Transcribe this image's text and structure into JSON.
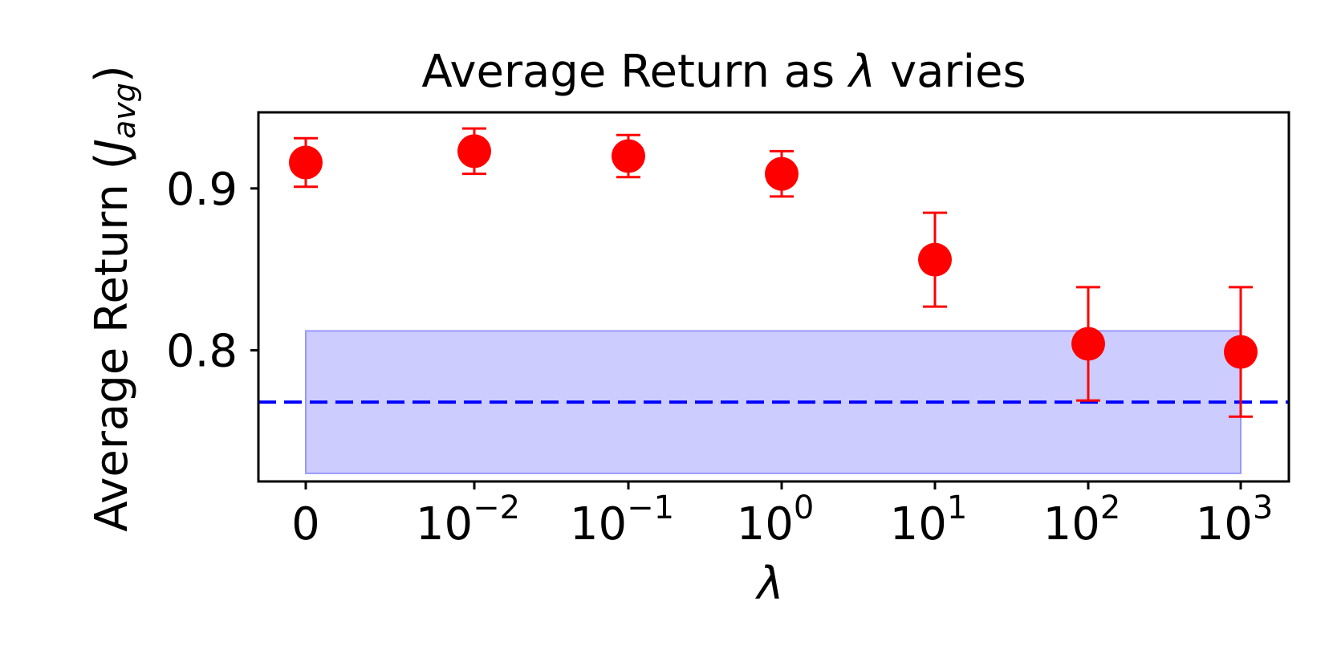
{
  "chart_data": {
    "type": "scatter",
    "title": "Average Return as λ varies",
    "title_parts": {
      "prefix": "Average Return as ",
      "symbol": "λ",
      "suffix": " varies"
    },
    "xlabel": "λ",
    "ylabel": {
      "prefix": "Average Return (",
      "var": "J",
      "sub": "avg",
      "suffix": ")"
    },
    "x_ticks": [
      {
        "base": "0",
        "exp": ""
      },
      {
        "base": "10",
        "exp": "−2"
      },
      {
        "base": "10",
        "exp": "−1"
      },
      {
        "base": "10",
        "exp": "0"
      },
      {
        "base": "10",
        "exp": "1"
      },
      {
        "base": "10",
        "exp": "2"
      },
      {
        "base": "10",
        "exp": "3"
      }
    ],
    "x_values": [
      "0",
      "1e-2",
      "1e-1",
      "1e0",
      "1e1",
      "1e2",
      "1e3"
    ],
    "y_ticks": [
      "0.8",
      "0.9"
    ],
    "ylim": [
      0.719,
      0.947
    ],
    "series": [
      {
        "marker": "circle",
        "values": [
          0.916,
          0.923,
          0.92,
          0.909,
          0.856,
          0.804,
          0.799
        ],
        "errors": [
          0.015,
          0.014,
          0.013,
          0.014,
          0.029,
          0.035,
          0.04
        ]
      }
    ],
    "baseline": {
      "mean": 0.768,
      "band_low": 0.724,
      "band_high": 0.812
    },
    "grid": false,
    "colors": {
      "points": "#ff0000",
      "baseline": "#0000ff",
      "band": "#ccccff"
    }
  }
}
